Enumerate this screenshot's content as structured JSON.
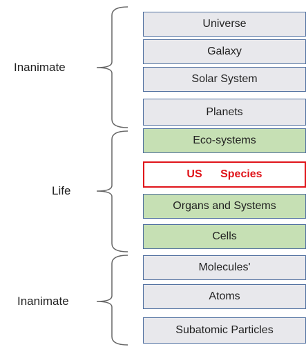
{
  "groups": [
    {
      "label": "Inanimate",
      "items": [
        "Universe",
        "Galaxy",
        "Solar System",
        "Planets"
      ]
    },
    {
      "label": "Life",
      "items": [
        "Eco-systems",
        "US Species",
        "Organs and Systems",
        "Cells"
      ]
    },
    {
      "label": "Inanimate",
      "items": [
        "Molecules'",
        "Atoms",
        "Subatomic Particles"
      ]
    }
  ]
}
